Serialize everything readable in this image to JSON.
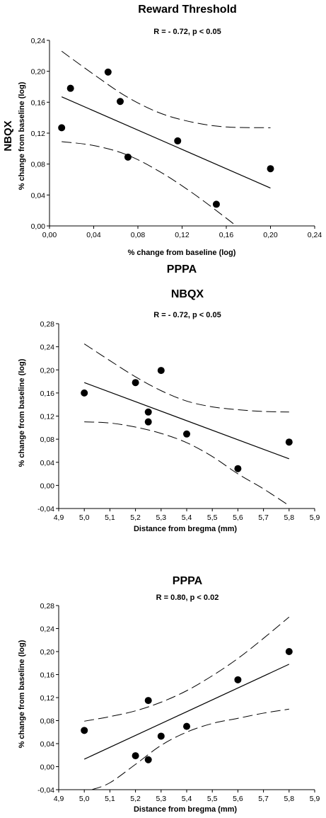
{
  "chart_data": [
    {
      "type": "scatter",
      "title": "Reward Threshold",
      "side_label": "NBQX",
      "stat_text": "R = - 0.72, p < 0.05",
      "xlabel": "% change from baseline (log)",
      "ylabel": "% change from baseline (log)",
      "bottom_label": "PPPA",
      "xlim": [
        0,
        0.24
      ],
      "ylim": [
        0,
        0.24
      ],
      "x_ticks": [
        "0,00",
        "0,04",
        "0,08",
        "0,12",
        "0,16",
        "0,20",
        "0,24"
      ],
      "y_ticks": [
        "0,00",
        "0,04",
        "0,08",
        "0,12",
        "0,16",
        "0,20",
        "0,24"
      ],
      "x": [
        0.011,
        0.019,
        0.053,
        0.064,
        0.071,
        0.116,
        0.151,
        0.2
      ],
      "y": [
        0.127,
        0.178,
        0.199,
        0.161,
        0.089,
        0.11,
        0.028,
        0.074
      ],
      "fit_line": {
        "x": [
          0.011,
          0.2
        ],
        "y": [
          0.167,
          0.049
        ]
      },
      "ci_upper": {
        "x": [
          0.011,
          0.04,
          0.07,
          0.1,
          0.13,
          0.16,
          0.2
        ],
        "y": [
          0.226,
          0.196,
          0.167,
          0.146,
          0.134,
          0.128,
          0.127
        ]
      },
      "ci_lower": {
        "x": [
          0.011,
          0.04,
          0.07,
          0.1,
          0.13,
          0.16,
          0.175
        ],
        "y": [
          0.109,
          0.104,
          0.092,
          0.07,
          0.042,
          0.01,
          -0.007
        ]
      },
      "grid": false
    },
    {
      "type": "scatter",
      "title": "NBQX",
      "stat_text": "R = - 0.72, p < 0.05",
      "xlabel": "Distance from bregma (mm)",
      "ylabel": "% change from baseline (log)",
      "xlim": [
        4.9,
        5.9
      ],
      "ylim": [
        -0.04,
        0.28
      ],
      "x_ticks": [
        "4,9",
        "5,0",
        "5,1",
        "5,2",
        "5,3",
        "5,4",
        "5,5",
        "5,6",
        "5,7",
        "5,8",
        "5,9"
      ],
      "y_ticks": [
        "-0,04",
        "0,00",
        "0,04",
        "0,08",
        "0,12",
        "0,16",
        "0,20",
        "0,24",
        "0,28"
      ],
      "x": [
        5.0,
        5.2,
        5.25,
        5.25,
        5.3,
        5.4,
        5.6,
        5.8
      ],
      "y": [
        0.16,
        0.178,
        0.127,
        0.11,
        0.199,
        0.089,
        0.029,
        0.075
      ],
      "fit_line": {
        "x": [
          5.0,
          5.8
        ],
        "y": [
          0.178,
          0.046
        ]
      },
      "ci_upper": {
        "x": [
          5.0,
          5.1,
          5.2,
          5.3,
          5.4,
          5.5,
          5.6,
          5.7,
          5.8
        ],
        "y": [
          0.245,
          0.216,
          0.188,
          0.164,
          0.146,
          0.136,
          0.131,
          0.128,
          0.127
        ]
      },
      "ci_lower": {
        "x": [
          5.0,
          5.1,
          5.2,
          5.3,
          5.4,
          5.5,
          5.6,
          5.7,
          5.8
        ],
        "y": [
          0.11,
          0.108,
          0.101,
          0.09,
          0.074,
          0.05,
          0.02,
          -0.006,
          -0.035
        ]
      },
      "grid": false
    },
    {
      "type": "scatter",
      "title": "PPPA",
      "stat_text": "R = 0.80, p < 0.02",
      "xlabel": "Distance from bregma (mm)",
      "ylabel": "% change from baseline (log)",
      "xlim": [
        4.9,
        5.9
      ],
      "ylim": [
        -0.04,
        0.28
      ],
      "x_ticks": [
        "4,9",
        "5,0",
        "5,1",
        "5,2",
        "5,3",
        "5,4",
        "5,5",
        "5,6",
        "5,7",
        "5,8",
        "5,9"
      ],
      "y_ticks": [
        "-0,04",
        "0,00",
        "0,04",
        "0,08",
        "0,12",
        "0,16",
        "0,20",
        "0,24",
        "0,28"
      ],
      "x": [
        5.0,
        5.2,
        5.25,
        5.25,
        5.3,
        5.4,
        5.6,
        5.8
      ],
      "y": [
        0.063,
        0.019,
        0.012,
        0.115,
        0.053,
        0.07,
        0.151,
        0.2
      ],
      "fit_line": {
        "x": [
          5.0,
          5.8
        ],
        "y": [
          0.013,
          0.178
        ]
      },
      "ci_upper": {
        "x": [
          5.0,
          5.1,
          5.2,
          5.3,
          5.4,
          5.5,
          5.6,
          5.7,
          5.8
        ],
        "y": [
          0.079,
          0.087,
          0.097,
          0.112,
          0.132,
          0.158,
          0.188,
          0.223,
          0.26
        ]
      },
      "ci_lower": {
        "x": [
          5.03,
          5.1,
          5.2,
          5.3,
          5.4,
          5.5,
          5.6,
          5.7,
          5.8
        ],
        "y": [
          -0.04,
          -0.028,
          0.004,
          0.037,
          0.06,
          0.075,
          0.084,
          0.093,
          0.1
        ]
      },
      "grid": false
    }
  ]
}
